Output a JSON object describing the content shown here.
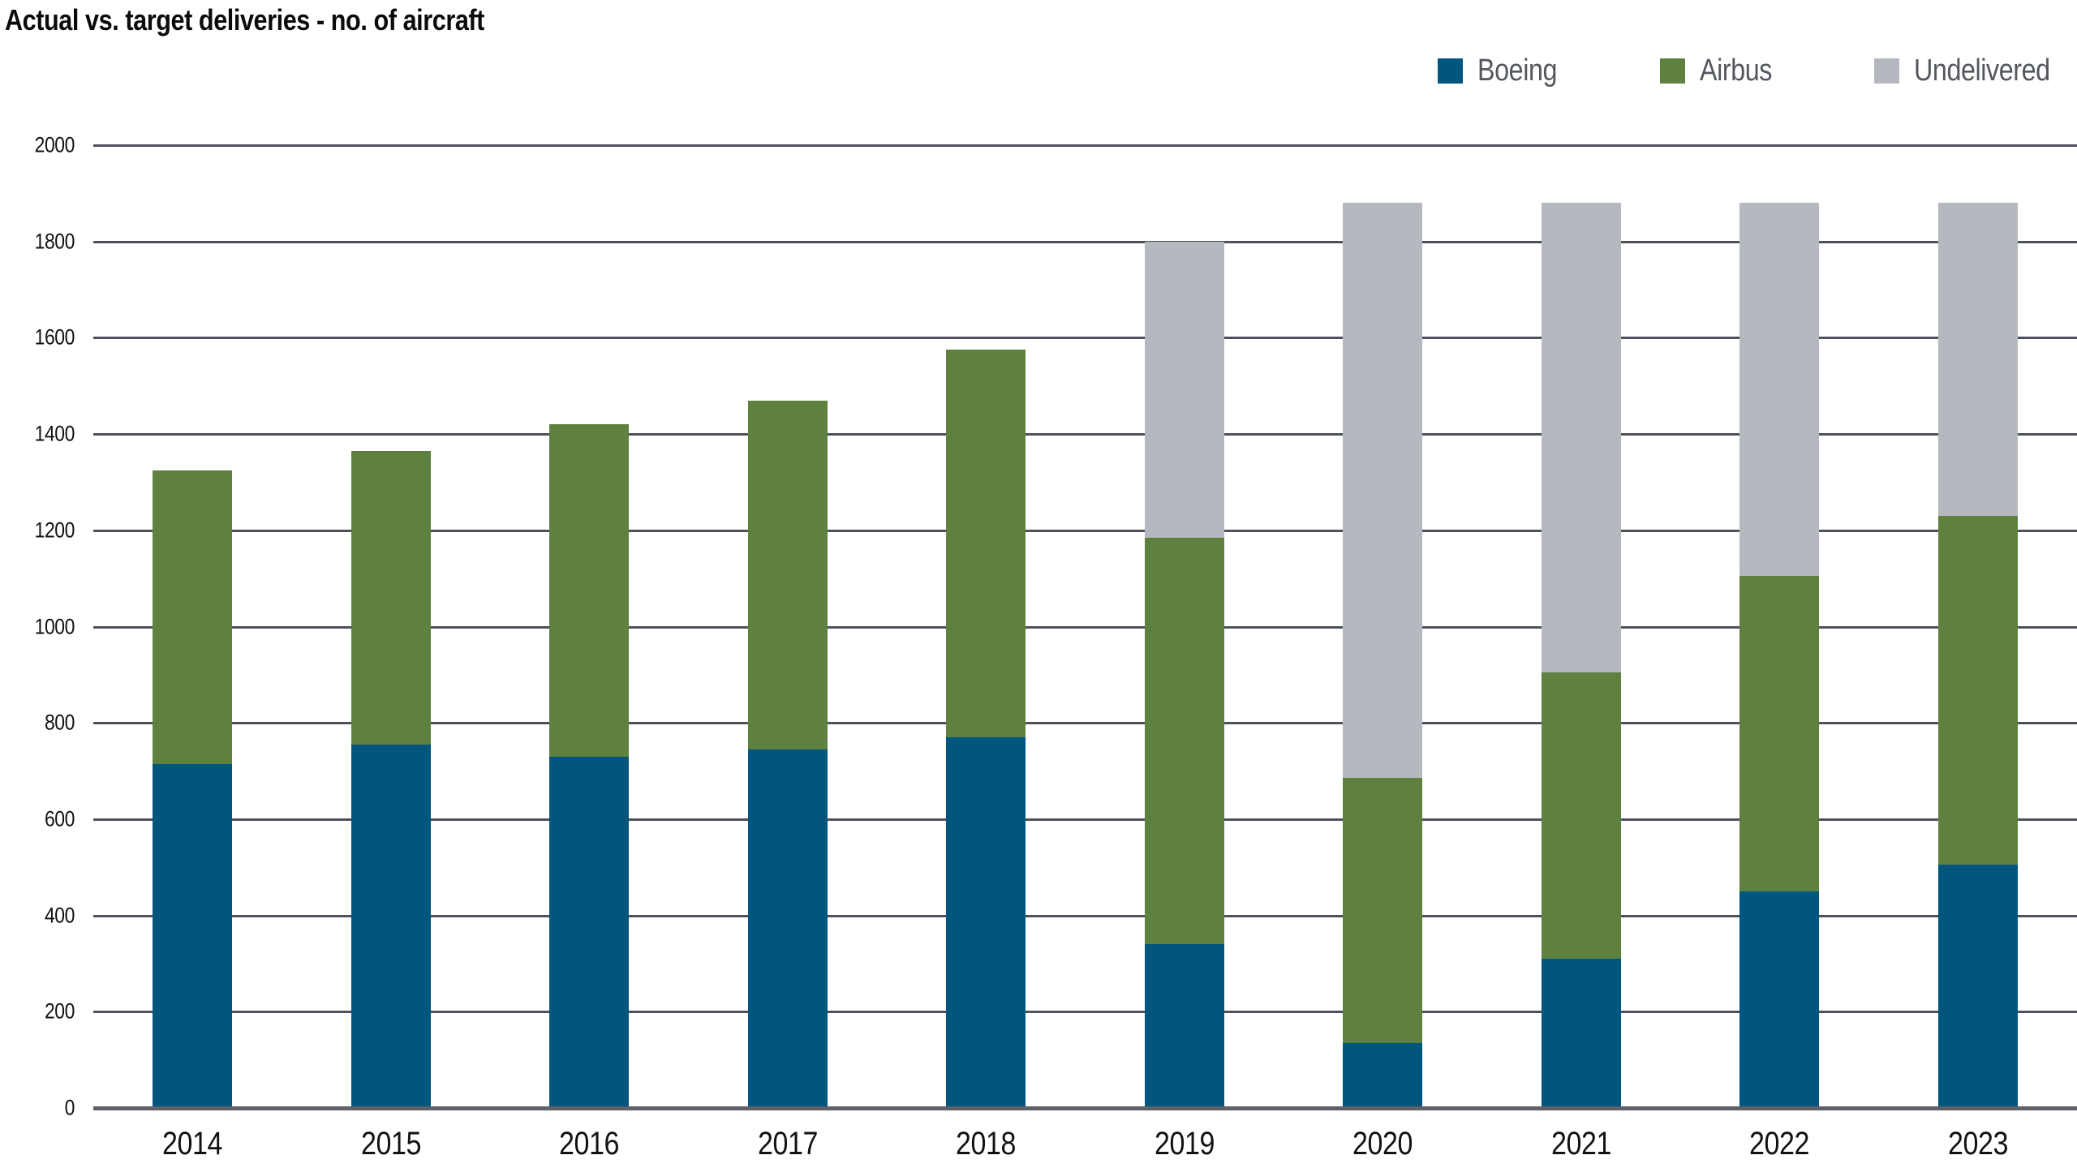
{
  "title": "Actual vs. target deliveries - no. of aircraft",
  "legend": {
    "position": "top-right",
    "items": [
      "Boeing",
      "Airbus",
      "Undelivered"
    ]
  },
  "chart_data": {
    "type": "bar",
    "stacked": true,
    "title": "Actual vs. target deliveries - no. of aircraft",
    "xlabel": "",
    "ylabel": "",
    "categories": [
      "2014",
      "2015",
      "2016",
      "2017",
      "2018",
      "2019",
      "2020",
      "2021",
      "2022",
      "2023"
    ],
    "series": [
      {
        "name": "Boeing",
        "color": "#00567D",
        "values": [
          715,
          755,
          730,
          745,
          770,
          340,
          135,
          310,
          450,
          505
        ]
      },
      {
        "name": "Airbus",
        "color": "#5E8140",
        "values": [
          610,
          610,
          690,
          725,
          805,
          845,
          550,
          595,
          655,
          725
        ]
      },
      {
        "name": "Undelivered",
        "color": "#B5B8BE",
        "values": [
          0,
          0,
          0,
          0,
          0,
          615,
          1195,
          975,
          775,
          650
        ]
      }
    ],
    "stack_totals": [
      1325,
      1365,
      1420,
      1470,
      1575,
      1800,
      1880,
      1880,
      1880,
      1880
    ],
    "ylim": [
      0,
      2000
    ],
    "yticks": [
      0,
      200,
      400,
      600,
      800,
      1000,
      1200,
      1400,
      1600,
      1800,
      2000
    ],
    "grid": true,
    "legend_position": "top-right",
    "colors": {
      "gridline": "#4D525A",
      "baseline": "#5E6168",
      "legend_text": "#54585E",
      "axis_text": "#121212",
      "background": "#FFFFFF"
    }
  }
}
